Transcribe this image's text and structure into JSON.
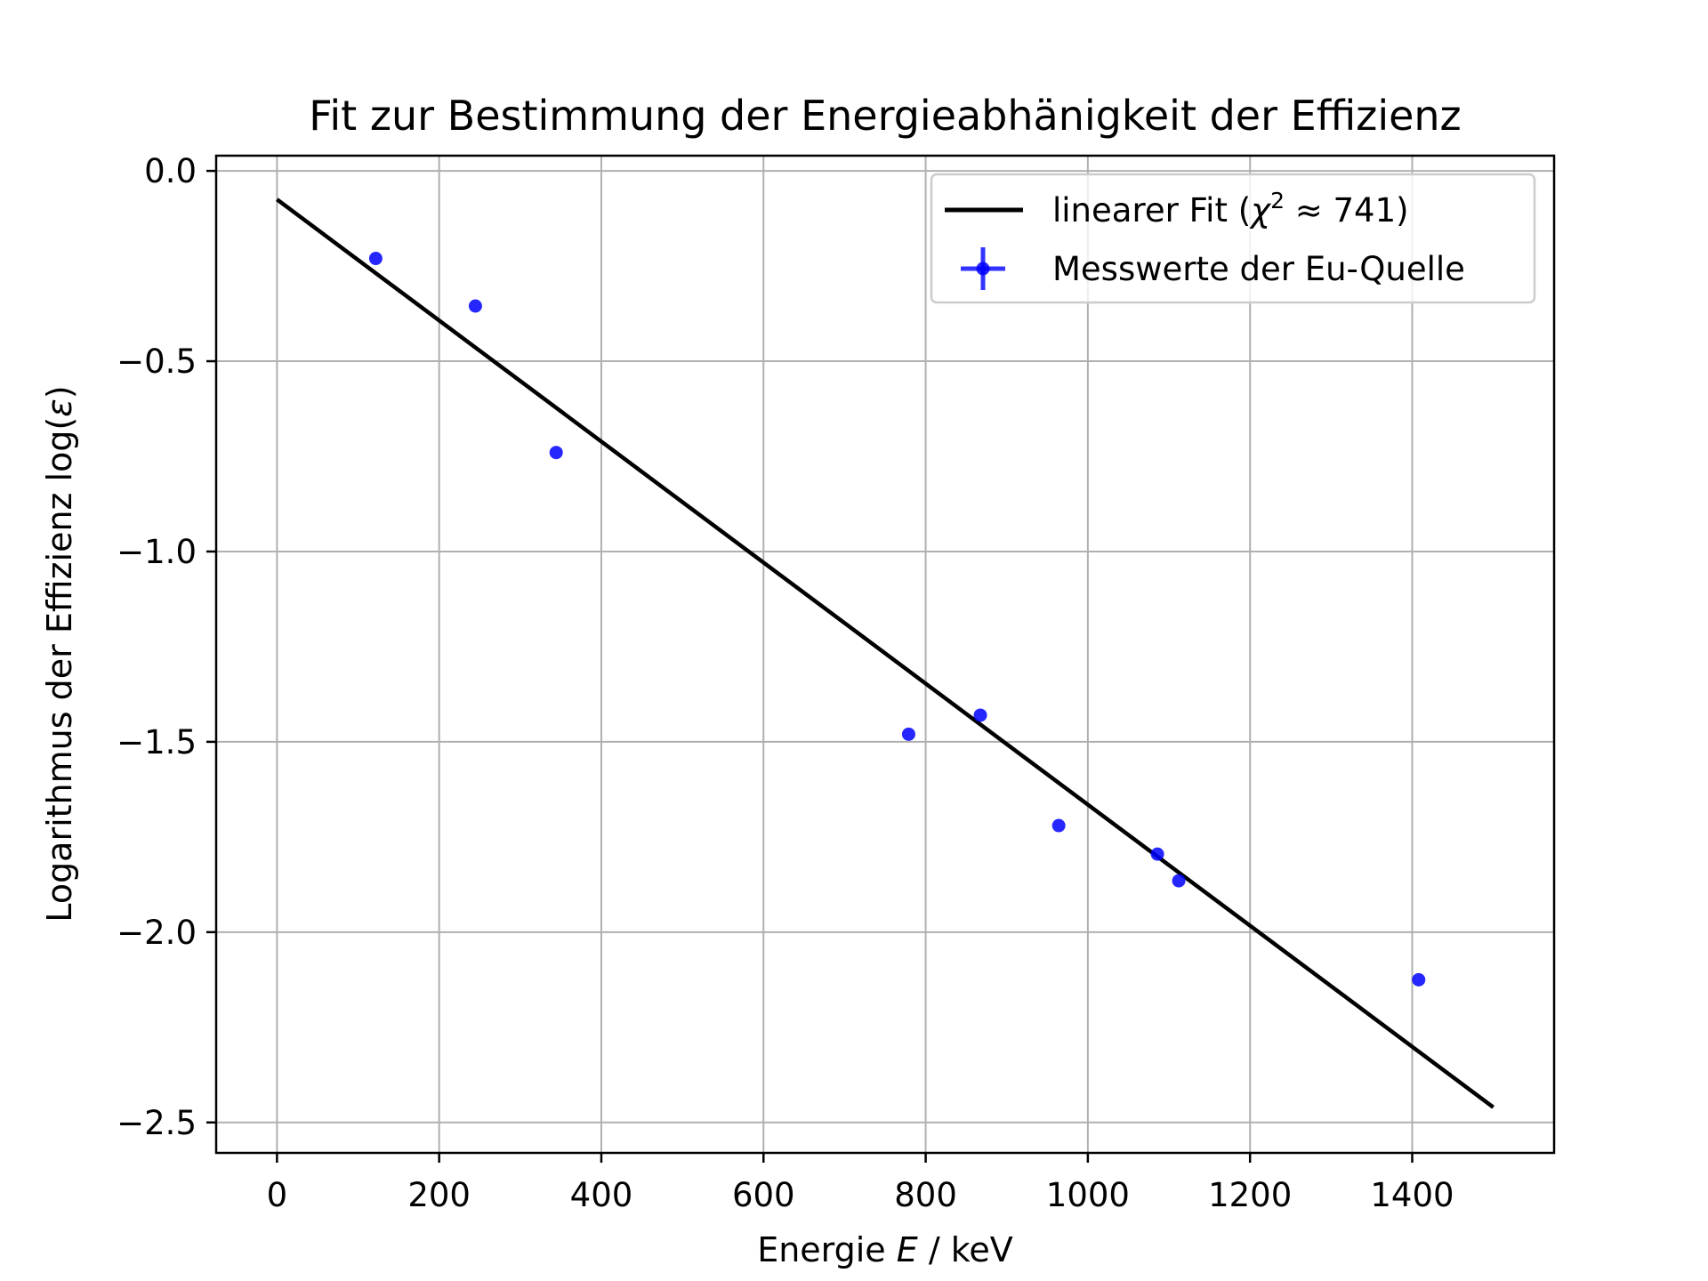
{
  "chart_data": {
    "type": "scatter",
    "title": "Fit zur Bestimmung der Energieabhänigkeit der Effizienz",
    "xlabel_parts": [
      "Energie ",
      "E",
      " / keV"
    ],
    "ylabel_parts": [
      "Logarithmus der Effizienz log(",
      "ε",
      ")"
    ],
    "xlim": [
      -75,
      1575
    ],
    "ylim": [
      -2.58,
      0.04
    ],
    "xticks": [
      0,
      200,
      400,
      600,
      800,
      1000,
      1200,
      1400
    ],
    "xtick_labels": [
      "0",
      "200",
      "400",
      "600",
      "800",
      "1000",
      "1200",
      "1400"
    ],
    "yticks": [
      0.0,
      -0.5,
      -1.0,
      -1.5,
      -2.0,
      -2.5
    ],
    "ytick_labels": [
      "0.0",
      "−0.5",
      "−1.0",
      "−1.5",
      "−2.0",
      "−2.5"
    ],
    "grid": true,
    "legend_position": "top-right",
    "series": [
      {
        "name": "Messwerte der Eu-Quelle",
        "kind": "errorbar-points",
        "color": "#0000ff",
        "x": [
          121.8,
          244.7,
          344.3,
          779.0,
          867.4,
          964.1,
          1085.8,
          1112.1,
          1408.0
        ],
        "y": [
          -0.23,
          -0.355,
          -0.74,
          -1.48,
          -1.43,
          -1.72,
          -1.795,
          -1.865,
          -2.125
        ]
      },
      {
        "name": "linearer Fit (χ² ≈ 741)",
        "name_parts": [
          "linearer Fit (",
          "χ",
          "2",
          " ≈ 741)"
        ],
        "kind": "line",
        "color": "#000000",
        "x": [
          0,
          1500
        ],
        "y": [
          -0.075,
          -2.46
        ]
      }
    ]
  }
}
